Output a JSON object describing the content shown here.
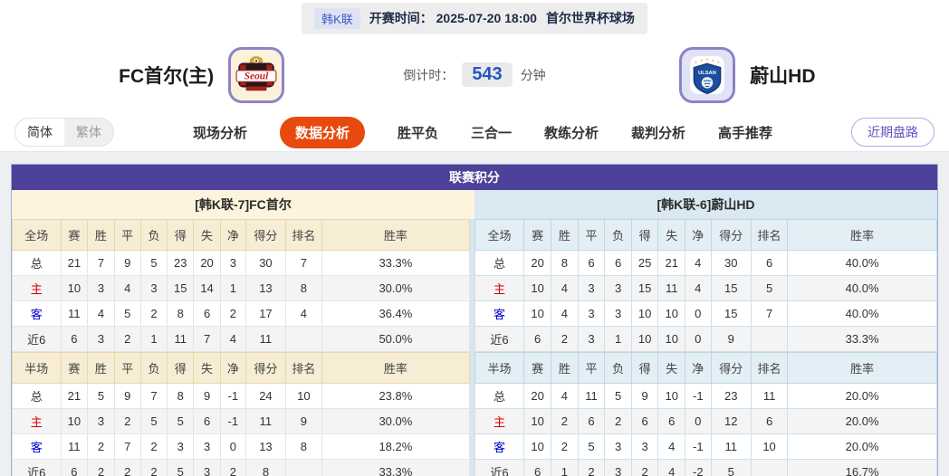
{
  "top_bar": {
    "league": "韩K联",
    "kickoff": "开赛时间： 2025-07-20 18:00",
    "venue": "首尔世界杯球场"
  },
  "header": {
    "home_name": "FC首尔(主)",
    "home_logo_text": "Seoul",
    "away_name": "蔚山HD",
    "away_logo_text": "ULSAN",
    "countdown_label": "倒计时：",
    "countdown_value": "543",
    "countdown_unit": "分钟"
  },
  "lang_toggle": {
    "simplified": "简体",
    "traditional": "繁体",
    "active": "简体"
  },
  "nav": {
    "items": [
      {
        "id": "live-analysis",
        "label": "现场分析",
        "active": false
      },
      {
        "id": "data-analysis",
        "label": "数据分析",
        "active": true
      },
      {
        "id": "win-draw-loss",
        "label": "胜平负",
        "active": false
      },
      {
        "id": "three-in-one",
        "label": "三合一",
        "active": false
      },
      {
        "id": "coach-analysis",
        "label": "教练分析",
        "active": false
      },
      {
        "id": "referee-analysis",
        "label": "裁判分析",
        "active": false
      },
      {
        "id": "expert-picks",
        "label": "高手推荐",
        "active": false
      }
    ],
    "recent_button": "近期盘路"
  },
  "league_table": {
    "title": "联赛积分",
    "home_header": "[韩K联-7]FC首尔",
    "away_header": "[韩K联-6]蔚山HD",
    "home_full": {
      "columns": [
        "全场",
        "赛",
        "胜",
        "平",
        "负",
        "得",
        "失",
        "净",
        "得分",
        "排名",
        "胜率"
      ],
      "rows": [
        {
          "type": "total",
          "cells": [
            "总",
            "21",
            "7",
            "9",
            "5",
            "23",
            "20",
            "3",
            "30",
            "7",
            "33.3%"
          ]
        },
        {
          "type": "home",
          "cells": [
            "主",
            "10",
            "3",
            "4",
            "3",
            "15",
            "14",
            "1",
            "13",
            "8",
            "30.0%"
          ]
        },
        {
          "type": "away",
          "cells": [
            "客",
            "11",
            "4",
            "5",
            "2",
            "8",
            "6",
            "2",
            "17",
            "4",
            "36.4%"
          ]
        },
        {
          "type": "recent",
          "cells": [
            "近6",
            "6",
            "3",
            "2",
            "1",
            "11",
            "7",
            "4",
            "11",
            "",
            "50.0%"
          ]
        }
      ]
    },
    "home_half": {
      "columns": [
        "半场",
        "赛",
        "胜",
        "平",
        "负",
        "得",
        "失",
        "净",
        "得分",
        "排名",
        "胜率"
      ],
      "rows": [
        {
          "type": "total",
          "cells": [
            "总",
            "21",
            "5",
            "9",
            "7",
            "8",
            "9",
            "-1",
            "24",
            "10",
            "23.8%"
          ]
        },
        {
          "type": "home",
          "cells": [
            "主",
            "10",
            "3",
            "2",
            "5",
            "5",
            "6",
            "-1",
            "11",
            "9",
            "30.0%"
          ]
        },
        {
          "type": "away",
          "cells": [
            "客",
            "11",
            "2",
            "7",
            "2",
            "3",
            "3",
            "0",
            "13",
            "8",
            "18.2%"
          ]
        },
        {
          "type": "recent",
          "cells": [
            "近6",
            "6",
            "2",
            "2",
            "2",
            "5",
            "3",
            "2",
            "8",
            "",
            "33.3%"
          ]
        }
      ]
    },
    "away_full": {
      "columns": [
        "全场",
        "赛",
        "胜",
        "平",
        "负",
        "得",
        "失",
        "净",
        "得分",
        "排名",
        "胜率"
      ],
      "rows": [
        {
          "type": "total",
          "cells": [
            "总",
            "20",
            "8",
            "6",
            "6",
            "25",
            "21",
            "4",
            "30",
            "6",
            "40.0%"
          ]
        },
        {
          "type": "home",
          "cells": [
            "主",
            "10",
            "4",
            "3",
            "3",
            "15",
            "11",
            "4",
            "15",
            "5",
            "40.0%"
          ]
        },
        {
          "type": "away",
          "cells": [
            "客",
            "10",
            "4",
            "3",
            "3",
            "10",
            "10",
            "0",
            "15",
            "7",
            "40.0%"
          ]
        },
        {
          "type": "recent",
          "cells": [
            "近6",
            "6",
            "2",
            "3",
            "1",
            "10",
            "10",
            "0",
            "9",
            "",
            "33.3%"
          ]
        }
      ]
    },
    "away_half": {
      "columns": [
        "半场",
        "赛",
        "胜",
        "平",
        "负",
        "得",
        "失",
        "净",
        "得分",
        "排名",
        "胜率"
      ],
      "rows": [
        {
          "type": "total",
          "cells": [
            "总",
            "20",
            "4",
            "11",
            "5",
            "9",
            "10",
            "-1",
            "23",
            "11",
            "20.0%"
          ]
        },
        {
          "type": "home",
          "cells": [
            "主",
            "10",
            "2",
            "6",
            "2",
            "6",
            "6",
            "0",
            "12",
            "6",
            "20.0%"
          ]
        },
        {
          "type": "away",
          "cells": [
            "客",
            "10",
            "2",
            "5",
            "3",
            "3",
            "4",
            "-1",
            "11",
            "10",
            "20.0%"
          ]
        },
        {
          "type": "recent",
          "cells": [
            "近6",
            "6",
            "1",
            "2",
            "3",
            "2",
            "4",
            "-2",
            "5",
            "",
            "16.7%"
          ]
        }
      ]
    }
  },
  "colors": {
    "title_purple": "#4e4199",
    "active_tab_orange": "#e8490e",
    "home_row_red": "#cc0000",
    "away_row_blue": "#0000cc",
    "home_panel_cream": "#fcf4dc",
    "away_panel_blue": "#d9e8f1"
  }
}
